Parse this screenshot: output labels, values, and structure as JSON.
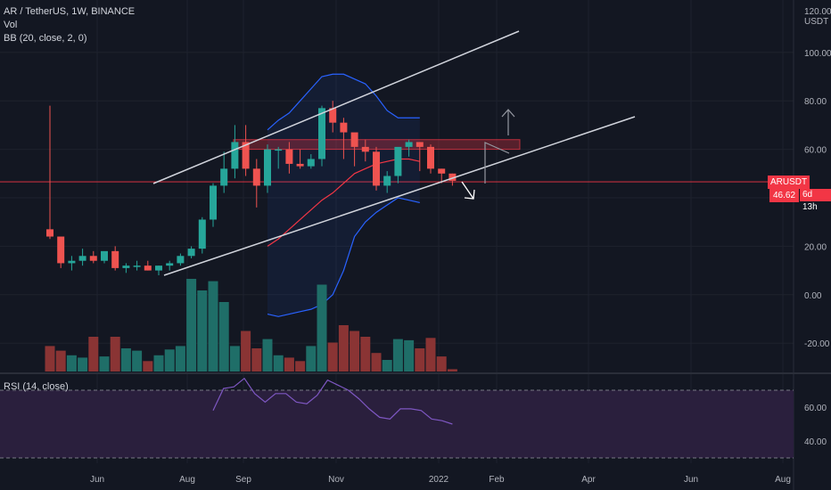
{
  "legend": {
    "symbol_line": "AR / TetherUS, 1W, BINANCE",
    "vol_label": "Vol",
    "bb_label": "BB (20, close, 2, 0)"
  },
  "rsi": {
    "label": "RSI (14, close)",
    "ticks": [
      "60.00",
      "40.00"
    ],
    "values": [
      58,
      71,
      72,
      77,
      68,
      63,
      68,
      68,
      63,
      62,
      67,
      76,
      73,
      70,
      65,
      59,
      54,
      53,
      59,
      59,
      58,
      53,
      52,
      50
    ]
  },
  "price_axis": {
    "currency": "USDT",
    "top_tick": "120.00",
    "ticks": [
      "100.00",
      "80.00",
      "60.00",
      "20.00",
      "0.00",
      "-20.00"
    ]
  },
  "last_price": {
    "symbol": "ARUSDT",
    "value": "46.62",
    "countdown": "6d 13h"
  },
  "colors": {
    "up": "#26a69a",
    "down": "#ef5350",
    "bb_band": "#2962ff",
    "bb_basis": "#f23645",
    "rsi_line": "#7e57c2",
    "rsi_fill": "#2a1f3d",
    "trendline": "#d1d4dc",
    "zone": "#f2364550"
  },
  "chart_data": {
    "type": "candlestick",
    "title": "AR / TetherUS, 1W, BINANCE",
    "x_ticks": [
      "Jun",
      "Aug",
      "Sep",
      "Nov",
      "2022",
      "Feb",
      "Apr",
      "Jun",
      "Aug"
    ],
    "ylim": [
      -32,
      122
    ],
    "candles": [
      {
        "o": 27,
        "h": 78,
        "l": 23,
        "c": 24
      },
      {
        "o": 24,
        "h": 24,
        "l": 11,
        "c": 13
      },
      {
        "o": 13,
        "h": 16,
        "l": 10,
        "c": 14
      },
      {
        "o": 14,
        "h": 19,
        "l": 12,
        "c": 16
      },
      {
        "o": 16,
        "h": 18,
        "l": 13,
        "c": 14
      },
      {
        "o": 14,
        "h": 17,
        "l": 13,
        "c": 18
      },
      {
        "o": 18,
        "h": 20,
        "l": 10,
        "c": 11
      },
      {
        "o": 11,
        "h": 13,
        "l": 9,
        "c": 12
      },
      {
        "o": 12,
        "h": 14,
        "l": 10,
        "c": 12
      },
      {
        "o": 12,
        "h": 14,
        "l": 10,
        "c": 10
      },
      {
        "o": 10,
        "h": 12,
        "l": 8,
        "c": 12
      },
      {
        "o": 12,
        "h": 14,
        "l": 10,
        "c": 13
      },
      {
        "o": 13,
        "h": 17,
        "l": 12,
        "c": 16
      },
      {
        "o": 16,
        "h": 20,
        "l": 15,
        "c": 19
      },
      {
        "o": 19,
        "h": 32,
        "l": 17,
        "c": 31
      },
      {
        "o": 31,
        "h": 46,
        "l": 28,
        "c": 45
      },
      {
        "o": 45,
        "h": 59,
        "l": 42,
        "c": 52
      },
      {
        "o": 52,
        "h": 70,
        "l": 48,
        "c": 63
      },
      {
        "o": 63,
        "h": 70,
        "l": 49,
        "c": 52
      },
      {
        "o": 52,
        "h": 56,
        "l": 36,
        "c": 45
      },
      {
        "o": 45,
        "h": 62,
        "l": 42,
        "c": 60
      },
      {
        "o": 60,
        "h": 61,
        "l": 52,
        "c": 60
      },
      {
        "o": 60,
        "h": 63,
        "l": 50,
        "c": 54
      },
      {
        "o": 54,
        "h": 60,
        "l": 52,
        "c": 53
      },
      {
        "o": 53,
        "h": 58,
        "l": 52,
        "c": 56
      },
      {
        "o": 56,
        "h": 78,
        "l": 53,
        "c": 77
      },
      {
        "o": 77,
        "h": 80,
        "l": 67,
        "c": 71
      },
      {
        "o": 71,
        "h": 73,
        "l": 56,
        "c": 67
      },
      {
        "o": 67,
        "h": 66,
        "l": 53,
        "c": 61
      },
      {
        "o": 61,
        "h": 64,
        "l": 55,
        "c": 59
      },
      {
        "o": 59,
        "h": 61,
        "l": 43,
        "c": 45
      },
      {
        "o": 45,
        "h": 51,
        "l": 42,
        "c": 49
      },
      {
        "o": 49,
        "h": 60,
        "l": 46,
        "c": 61
      },
      {
        "o": 61,
        "h": 64,
        "l": 57,
        "c": 63
      },
      {
        "o": 63,
        "h": 63,
        "l": 51,
        "c": 61
      },
      {
        "o": 61,
        "h": 62,
        "l": 50,
        "c": 52
      },
      {
        "o": 52,
        "h": 52,
        "l": 46,
        "c": 50
      },
      {
        "o": 50,
        "h": 50,
        "l": 45,
        "c": 47
      }
    ],
    "volume": [
      22,
      18,
      14,
      12,
      30,
      13,
      30,
      20,
      18,
      9,
      14,
      19,
      22,
      80,
      70,
      78,
      60,
      22,
      35,
      20,
      28,
      14,
      12,
      9,
      22,
      75,
      25,
      40,
      35,
      30,
      16,
      10,
      28,
      27,
      20,
      29,
      13,
      2
    ],
    "bollinger": {
      "upper": [
        68,
        72,
        75,
        80,
        85,
        90,
        91,
        91,
        89,
        87,
        82,
        76,
        73,
        73,
        73
      ],
      "basis": [
        20,
        23,
        27,
        31,
        35,
        39,
        42,
        46,
        50,
        52,
        54,
        55,
        56,
        56,
        55
      ],
      "lower": [
        -8,
        -9,
        -8,
        -7,
        -6,
        -4,
        0,
        10,
        24,
        30,
        34,
        37,
        40,
        39,
        38
      ]
    },
    "trendlines": [
      {
        "from": {
          "t": 0,
          "p": 47
        },
        "to": {
          "t": 1,
          "p": 107
        }
      },
      {
        "from": {
          "t": 0,
          "p": 9
        },
        "to": {
          "t": 1,
          "p": 74
        }
      }
    ],
    "resistance_zone": [
      60,
      64
    ]
  }
}
